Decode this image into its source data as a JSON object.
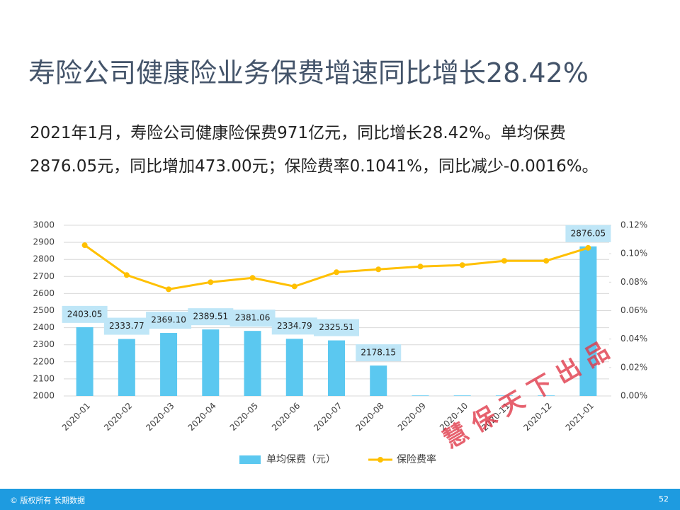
{
  "title": "寿险公司健康险业务保费增速同比增长28.42%",
  "paragraph": [
    "2021年1月，寿险公司健康险保费971亿元，同比增长28.42%。单均保费",
    "2876.05元，同比增加473.00元；保险费率0.1041%，同比减少-0.0016%。"
  ],
  "chart_data": {
    "type": "bar-line",
    "categories": [
      "2020-01",
      "2020-02",
      "2020-03",
      "2020-04",
      "2020-05",
      "2020-06",
      "2020-07",
      "2020-08",
      "2020-09",
      "2020-10",
      "2020-11",
      "2020-12",
      "2021-01"
    ],
    "series": [
      {
        "name": "单均保费（元）",
        "color": "#5bc8f0",
        "type": "bar",
        "values": [
          2403.05,
          2333.77,
          2369.1,
          2389.51,
          2381.06,
          2334.79,
          2325.51,
          2178.15,
          2003,
          2003,
          2003,
          2003,
          2876.05
        ],
        "value_labels": [
          "2403.05",
          "2333.77",
          "2369.10",
          "2389.51",
          "2381.06",
          "2334.79",
          "2325.51",
          "2178.15",
          null,
          null,
          null,
          null,
          "2876.05"
        ]
      },
      {
        "name": "保险费率",
        "color": "#ffc000",
        "type": "line",
        "axis": "y2",
        "values": [
          0.106,
          0.085,
          0.075,
          0.08,
          0.083,
          0.077,
          0.087,
          0.089,
          0.091,
          0.092,
          0.095,
          0.095,
          0.1041
        ]
      }
    ],
    "ylim": [
      2000,
      3000
    ],
    "yticks": [
      2000,
      2100,
      2200,
      2300,
      2400,
      2500,
      2600,
      2700,
      2800,
      2900,
      3000
    ],
    "y2lim": [
      0,
      0.12
    ],
    "y2ticks": [
      {
        "value": 0,
        "label": "0.00%"
      },
      {
        "value": 0.02,
        "label": "0.02%"
      },
      {
        "value": 0.04,
        "label": "0.04%"
      },
      {
        "value": 0.06,
        "label": "0.06%"
      },
      {
        "value": 0.08,
        "label": "0.08%"
      },
      {
        "value": 0.1,
        "label": "0.10%"
      },
      {
        "value": 0.12,
        "label": "0.12%"
      }
    ],
    "grid": true,
    "legend": "bottom"
  },
  "watermark": "慧 保 天 下 出 品",
  "footer": {
    "copyright": "© 版权所有 长期数据",
    "page": "52"
  }
}
